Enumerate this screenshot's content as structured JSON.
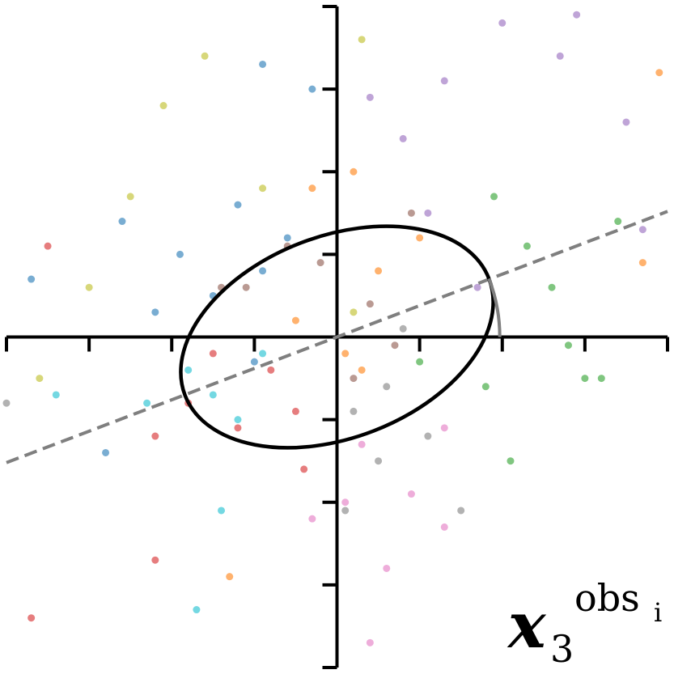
{
  "chart_data": {
    "type": "scatter",
    "xlim": [
      -4,
      4
    ],
    "ylim": [
      -4,
      4
    ],
    "xticks": [
      -4,
      -3,
      -2,
      -1,
      0,
      1,
      2,
      3,
      4
    ],
    "yticks": [
      -4,
      -3,
      -2,
      -1,
      0,
      1,
      2,
      3,
      4
    ],
    "series": [
      {
        "color": "#1f77b4",
        "x": [
          -3.7,
          -2.6,
          -2.2,
          -1.9,
          -1.5,
          -1.2,
          -0.9,
          -0.6,
          -0.3,
          -2.8,
          -1.0,
          -0.9
        ],
        "y": [
          0.7,
          1.4,
          0.3,
          1.0,
          0.5,
          1.6,
          0.8,
          1.2,
          3.0,
          -1.4,
          -0.3,
          3.3
        ]
      },
      {
        "color": "#ff7f0e",
        "x": [
          -0.3,
          0.2,
          0.5,
          1.0,
          -0.5,
          0.1,
          3.9,
          3.7,
          -1.3,
          0.3
        ],
        "y": [
          1.8,
          2.0,
          0.8,
          1.2,
          0.2,
          -0.2,
          3.2,
          0.9,
          -2.9,
          -0.4
        ]
      },
      {
        "color": "#2ca02c",
        "x": [
          1.9,
          2.3,
          2.6,
          3.0,
          3.4,
          2.1,
          1.8,
          2.8,
          3.2,
          1.0
        ],
        "y": [
          1.7,
          1.1,
          0.6,
          -0.5,
          1.4,
          -1.5,
          -0.6,
          -0.1,
          -0.5,
          -0.3
        ]
      },
      {
        "color": "#d62728",
        "x": [
          -3.5,
          -1.8,
          -1.2,
          -0.8,
          -0.5,
          -2.2,
          -1.5,
          -3.7,
          -0.4,
          -2.2
        ],
        "y": [
          1.1,
          -0.8,
          -1.1,
          -0.4,
          -0.9,
          -2.7,
          -0.2,
          -3.4,
          -1.6,
          -1.2
        ]
      },
      {
        "color": "#9467bd",
        "x": [
          0.8,
          1.3,
          2.0,
          2.7,
          3.5,
          1.1,
          2.9,
          0.4,
          1.7,
          3.7
        ],
        "y": [
          2.4,
          3.1,
          3.8,
          3.4,
          2.6,
          1.5,
          3.9,
          2.9,
          0.6,
          1.3
        ]
      },
      {
        "color": "#8c564b",
        "x": [
          -0.2,
          0.4,
          -1.1,
          0.7,
          -0.6,
          0.9,
          0.2,
          -1.4
        ],
        "y": [
          0.9,
          0.4,
          0.6,
          -0.1,
          1.1,
          1.5,
          -0.5,
          0.6
        ]
      },
      {
        "color": "#e377c2",
        "x": [
          0.3,
          0.9,
          1.3,
          0.6,
          0.1,
          1.3,
          -0.3,
          0.4
        ],
        "y": [
          -1.3,
          -1.9,
          -2.3,
          -2.8,
          -2.0,
          -1.1,
          -2.2,
          -3.7
        ]
      },
      {
        "color": "#7f7f7f",
        "x": [
          0.2,
          0.6,
          1.1,
          0.5,
          -4.0,
          1.5,
          0.8,
          0.1
        ],
        "y": [
          -0.9,
          -0.6,
          -1.2,
          -1.5,
          -0.8,
          -2.1,
          0.1,
          -2.1
        ]
      },
      {
        "color": "#bcbd22",
        "x": [
          -2.1,
          -2.5,
          -0.9,
          0.3,
          -3.0,
          -3.6,
          0.2,
          -1.6
        ],
        "y": [
          2.8,
          1.7,
          1.8,
          3.6,
          0.6,
          -0.5,
          0.3,
          3.4
        ]
      },
      {
        "color": "#17becf",
        "x": [
          -1.8,
          -1.5,
          -1.2,
          -0.9,
          -2.3,
          -1.4,
          -3.4,
          -1.7
        ],
        "y": [
          -0.4,
          -0.7,
          -1.0,
          -0.2,
          -0.8,
          -2.1,
          -0.7,
          -3.3
        ]
      }
    ],
    "ellipse": {
      "center": [
        0,
        0
      ],
      "semi_major": 1.97,
      "semi_minor": 1.22,
      "angle": 21
    },
    "trend_line": {
      "slope": 0.38,
      "intercept": 0
    },
    "annotation": {
      "base": "x",
      "sub": "3",
      "sup": "obs",
      "sup_sub": "i"
    }
  }
}
